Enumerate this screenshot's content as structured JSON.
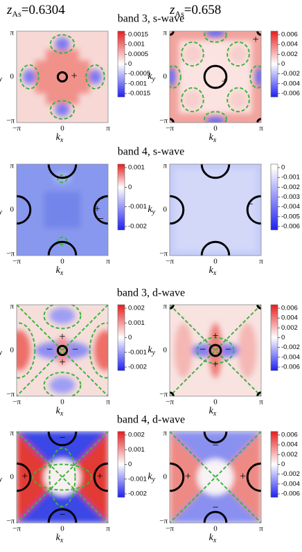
{
  "header": {
    "left": {
      "symbol": "z",
      "subscript": "As",
      "value": "=0.6304"
    },
    "right": {
      "symbol": "z",
      "subscript": "As",
      "value": "=0.658"
    }
  },
  "axes": {
    "pi": "π",
    "minus_pi": "−π",
    "zero": "0",
    "k": "k",
    "y": "y",
    "x": "x"
  },
  "rows": [
    {
      "title": "band 3, s-wave",
      "panels": [
        {
          "colorbar": [
            "0.0015",
            "0.001",
            "0.0005",
            "0",
            "-0.0005",
            "-0.001",
            "-0.0015"
          ],
          "signs": [
            "+"
          ]
        },
        {
          "colorbar": [
            "0.006",
            "0.004",
            "0.002",
            "0",
            "-0.002",
            "-0.004",
            "-0.006"
          ],
          "signs": [
            "+",
            "+"
          ]
        }
      ]
    },
    {
      "title": "band 4, s-wave",
      "panels": [
        {
          "colorbar": [
            "0.001",
            "0",
            "-0.001",
            "-0.002"
          ],
          "signs": [
            "−",
            "+",
            "−"
          ]
        },
        {
          "colorbar": [
            "0",
            "-0.001",
            "-0.002",
            "-0.003",
            "-0.004",
            "-0.005",
            "-0.006"
          ],
          "signs": [
            "−"
          ]
        }
      ]
    },
    {
      "title": "band 3, d-wave",
      "panels": [
        {
          "colorbar": [
            "0.002",
            "0.001",
            "0",
            "-0.001",
            "-0.002"
          ],
          "signs": [
            "+",
            "−",
            "−",
            "+"
          ]
        },
        {
          "colorbar": [
            "0.006",
            "0.004",
            "0.002",
            "0",
            "-0.002",
            "-0.004",
            "-0.006"
          ],
          "signs": [
            "+",
            "−",
            "−",
            "+"
          ]
        }
      ]
    },
    {
      "title": "band 4, d-wave",
      "panels": [
        {
          "colorbar": [
            "0.002",
            "0.001",
            "0",
            "-0.001",
            "-0.002"
          ],
          "signs": [
            "−",
            "+",
            "+",
            "−"
          ]
        },
        {
          "colorbar": [
            "0.006",
            "0.004",
            "0.002",
            "0",
            "-0.002",
            "-0.004",
            "-0.006"
          ],
          "signs": [
            "−",
            "+",
            "+",
            "−"
          ]
        }
      ]
    }
  ]
}
